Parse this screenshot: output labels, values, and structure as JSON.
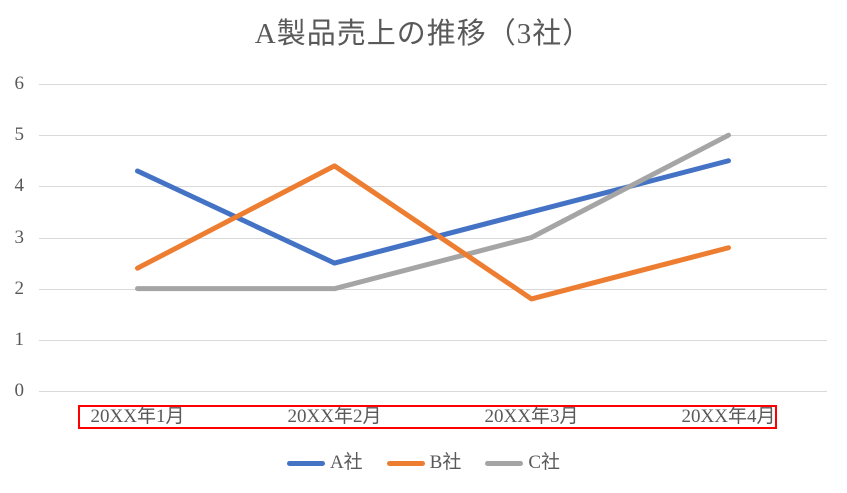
{
  "chart_data": {
    "type": "line",
    "title": "A製品売上の推移（3社）",
    "categories": [
      "20XX年1月",
      "20XX年2月",
      "20XX年3月",
      "20XX年4月"
    ],
    "series": [
      {
        "name": "A社",
        "color": "#4472C4",
        "values": [
          4.3,
          2.5,
          3.5,
          4.5
        ]
      },
      {
        "name": "B社",
        "color": "#ED7D31",
        "values": [
          2.4,
          4.4,
          1.8,
          2.8
        ]
      },
      {
        "name": "C社",
        "color": "#A5A5A5",
        "values": [
          2.0,
          2.0,
          3.0,
          5.0
        ]
      }
    ],
    "xlabel": "",
    "ylabel": "",
    "ylim": [
      0,
      6
    ],
    "y_ticks": [
      0,
      1,
      2,
      3,
      4,
      5,
      6
    ],
    "grid": true,
    "legend_position": "bottom",
    "draw_order": [
      0,
      2,
      1
    ],
    "gridline_color": "#D9D9D9",
    "text_color": "#595959"
  },
  "annotation": {
    "type": "rectangle",
    "color": "#FF0000"
  }
}
